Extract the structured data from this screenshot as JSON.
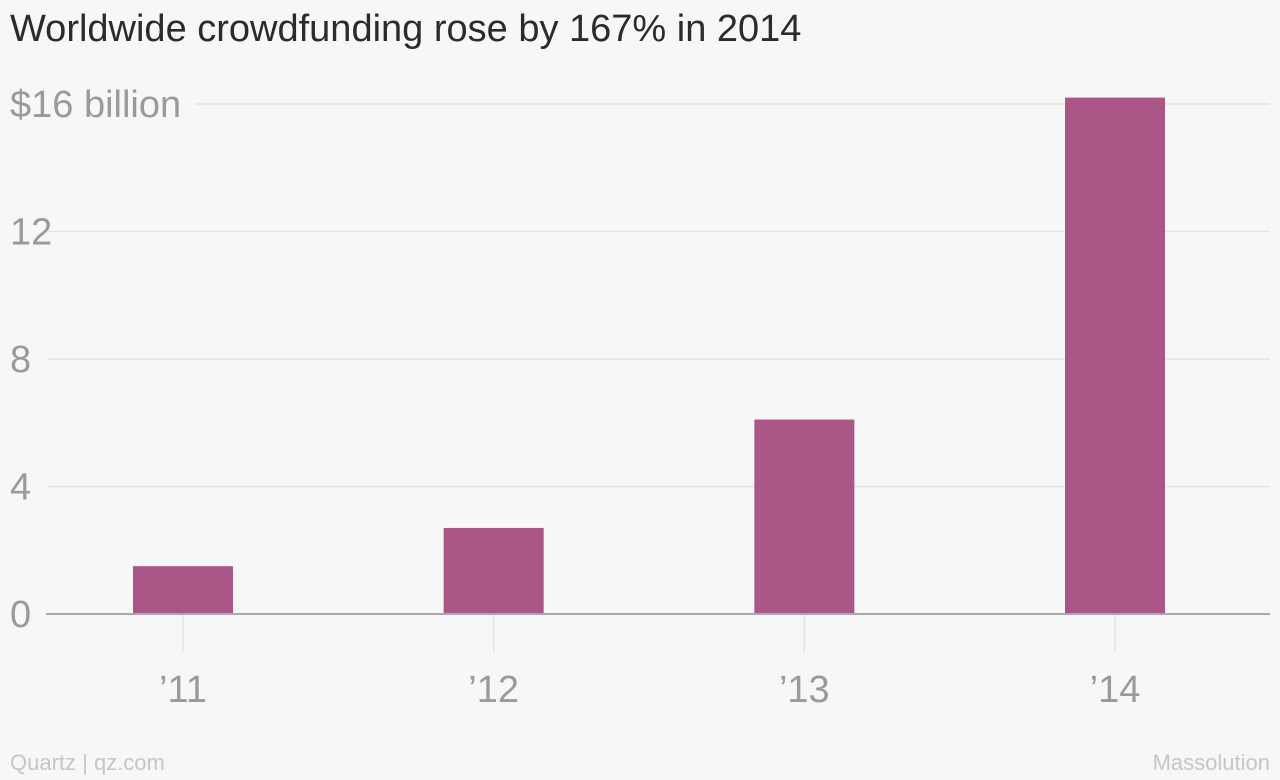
{
  "title": "Worldwide crowdfunding rose by 167% in 2014",
  "footer": {
    "credit": "Quartz | qz.com",
    "source": "Massolution"
  },
  "colors": {
    "bar": "#aa5787",
    "grid": "#e6e3e3",
    "baseline": "#a9a9ad",
    "tick_text": "#9a9a9a"
  },
  "chart_data": {
    "type": "bar",
    "categories": [
      "’11",
      "’12",
      "’13",
      "’14"
    ],
    "values": [
      1.5,
      2.7,
      6.1,
      16.2
    ],
    "title": "Worldwide crowdfunding rose by 167% in 2014",
    "xlabel": "",
    "ylabel": "",
    "ylim": [
      0,
      16
    ],
    "yticks": [
      0,
      4,
      8,
      12,
      16
    ],
    "ytick_labels": [
      "0",
      "4",
      "8",
      "12",
      "$16 billion"
    ],
    "grid": true
  }
}
